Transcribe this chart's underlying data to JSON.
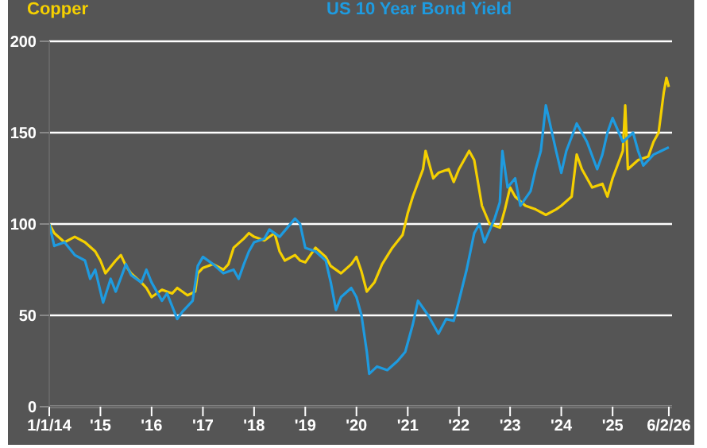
{
  "chart_data": {
    "type": "line",
    "legend": "top",
    "grid": "y",
    "marker": "none",
    "line_style": "solid",
    "xlim": [
      "2014-01-01",
      "2026-03-01"
    ],
    "xticks": [
      {
        "value": "2014-01-01",
        "label": "1/1/14"
      },
      {
        "value": "2015-01-01",
        "label": "'15"
      },
      {
        "value": "2016-01-01",
        "label": "'16"
      },
      {
        "value": "2017-01-01",
        "label": "'17"
      },
      {
        "value": "2018-01-01",
        "label": "'18"
      },
      {
        "value": "2019-01-01",
        "label": "'19"
      },
      {
        "value": "2020-01-01",
        "label": "'20"
      },
      {
        "value": "2021-01-01",
        "label": "'21"
      },
      {
        "value": "2022-01-01",
        "label": "'22"
      },
      {
        "value": "2023-01-01",
        "label": "'23"
      },
      {
        "value": "2024-01-01",
        "label": "'24"
      },
      {
        "value": "2025-01-01",
        "label": "'25"
      },
      {
        "value": "2026-02-06",
        "label": "6/2/26"
      }
    ],
    "ylim": [
      0,
      200
    ],
    "yticks": [
      0,
      50,
      100,
      150,
      200
    ],
    "series": [
      {
        "name": "Copper",
        "color": "#f5d000",
        "x": [
          "2014-01-01",
          "2014-02-06",
          "2014-04-20",
          "2014-07-02",
          "2014-09-13",
          "2014-11-25",
          "2015-01-01",
          "2015-02-06",
          "2015-04-20",
          "2015-05-27",
          "2015-07-02",
          "2015-08-08",
          "2015-10-20",
          "2015-11-25",
          "2016-01-01",
          "2016-03-15",
          "2016-05-27",
          "2016-07-02",
          "2016-09-13",
          "2016-11-07",
          "2016-11-25",
          "2017-01-01",
          "2017-03-15",
          "2017-05-27",
          "2017-07-02",
          "2017-08-08",
          "2017-10-20",
          "2017-11-25",
          "2018-01-01",
          "2018-03-15",
          "2018-05-27",
          "2018-07-02",
          "2018-08-08",
          "2018-10-20",
          "2018-11-25",
          "2019-01-01",
          "2019-03-15",
          "2019-05-27",
          "2019-07-02",
          "2019-09-13",
          "2019-11-25",
          "2020-01-01",
          "2020-02-06",
          "2020-03-15",
          "2020-05-08",
          "2020-07-02",
          "2020-09-13",
          "2020-11-25",
          "2021-01-01",
          "2021-02-06",
          "2021-04-20",
          "2021-05-08",
          "2021-07-02",
          "2021-08-08",
          "2021-10-20",
          "2021-11-25",
          "2022-01-01",
          "2022-03-15",
          "2022-04-20",
          "2022-06-14",
          "2022-08-08",
          "2022-10-20",
          "2022-11-25",
          "2023-01-01",
          "2023-02-06",
          "2023-04-20",
          "2023-07-02",
          "2023-09-13",
          "2023-11-25",
          "2024-01-01",
          "2024-03-15",
          "2024-04-20",
          "2024-05-27",
          "2024-08-08",
          "2024-10-20",
          "2024-11-25",
          "2025-01-01",
          "2025-03-15",
          "2025-04-01",
          "2025-04-20",
          "2025-07-02",
          "2025-09-13",
          "2025-10-20",
          "2025-11-25",
          "2026-01-01",
          "2026-01-20",
          "2026-02-06"
        ],
        "values": [
          100,
          95,
          90,
          93,
          90,
          85,
          80,
          73,
          80,
          83,
          77,
          73,
          68,
          65,
          60,
          64,
          62,
          65,
          61,
          63,
          73,
          76,
          78,
          75,
          78,
          87,
          92,
          95,
          93,
          91,
          95,
          85,
          80,
          83,
          80,
          79,
          87,
          82,
          77,
          73,
          78,
          82,
          74,
          63,
          68,
          78,
          87,
          94,
          106,
          115,
          130,
          140,
          125,
          128,
          130,
          123,
          130,
          140,
          135,
          110,
          100,
          98,
          108,
          120,
          115,
          110,
          108,
          105,
          108,
          110,
          115,
          138,
          130,
          120,
          122,
          115,
          125,
          140,
          165,
          130,
          135,
          137,
          145,
          150,
          172,
          180,
          175
        ]
      },
      {
        "name": "US 10 Year Bond Yield",
        "color": "#1e9be0",
        "x": [
          "2014-01-01",
          "2014-02-06",
          "2014-04-20",
          "2014-07-02",
          "2014-09-13",
          "2014-10-20",
          "2014-11-25",
          "2015-01-20",
          "2015-03-15",
          "2015-04-20",
          "2015-07-02",
          "2015-08-08",
          "2015-10-20",
          "2015-11-25",
          "2016-01-01",
          "2016-03-15",
          "2016-04-20",
          "2016-07-02",
          "2016-08-08",
          "2016-10-20",
          "2016-11-25",
          "2017-01-01",
          "2017-03-15",
          "2017-05-27",
          "2017-08-08",
          "2017-09-13",
          "2017-10-20",
          "2017-11-25",
          "2018-01-01",
          "2018-03-15",
          "2018-04-20",
          "2018-07-02",
          "2018-10-20",
          "2018-11-25",
          "2019-01-01",
          "2019-03-15",
          "2019-05-27",
          "2019-07-02",
          "2019-08-08",
          "2019-09-13",
          "2019-11-25",
          "2020-01-01",
          "2020-02-06",
          "2020-03-15",
          "2020-04-01",
          "2020-05-27",
          "2020-08-08",
          "2020-10-20",
          "2020-12-14",
          "2021-02-06",
          "2021-03-15",
          "2021-05-27",
          "2021-08-08",
          "2021-10-02",
          "2021-11-25",
          "2022-01-01",
          "2022-02-25",
          "2022-04-20",
          "2022-05-27",
          "2022-07-02",
          "2022-09-13",
          "2022-10-20",
          "2022-11-07",
          "2022-12-14",
          "2023-02-06",
          "2023-03-15",
          "2023-05-27",
          "2023-07-02",
          "2023-08-08",
          "2023-09-13",
          "2023-11-25",
          "2024-01-01",
          "2024-02-06",
          "2024-04-20",
          "2024-07-02",
          "2024-09-13",
          "2024-10-20",
          "2024-11-25",
          "2025-01-01",
          "2025-03-15",
          "2025-05-27",
          "2025-07-02",
          "2025-08-08",
          "2025-10-20",
          "2025-12-14",
          "2026-02-06"
        ],
        "values": [
          100,
          88,
          90,
          83,
          80,
          70,
          75,
          57,
          70,
          63,
          78,
          72,
          68,
          75,
          68,
          58,
          62,
          48,
          52,
          58,
          77,
          82,
          78,
          73,
          75,
          70,
          78,
          85,
          90,
          92,
          97,
          93,
          103,
          100,
          87,
          85,
          80,
          68,
          53,
          60,
          65,
          60,
          50,
          30,
          18,
          22,
          20,
          25,
          30,
          45,
          58,
          50,
          40,
          48,
          47,
          58,
          75,
          95,
          100,
          90,
          103,
          112,
          140,
          120,
          125,
          110,
          118,
          130,
          140,
          165,
          140,
          128,
          140,
          155,
          145,
          130,
          138,
          150,
          158,
          145,
          150,
          140,
          132,
          138,
          140,
          142
        ]
      }
    ]
  }
}
